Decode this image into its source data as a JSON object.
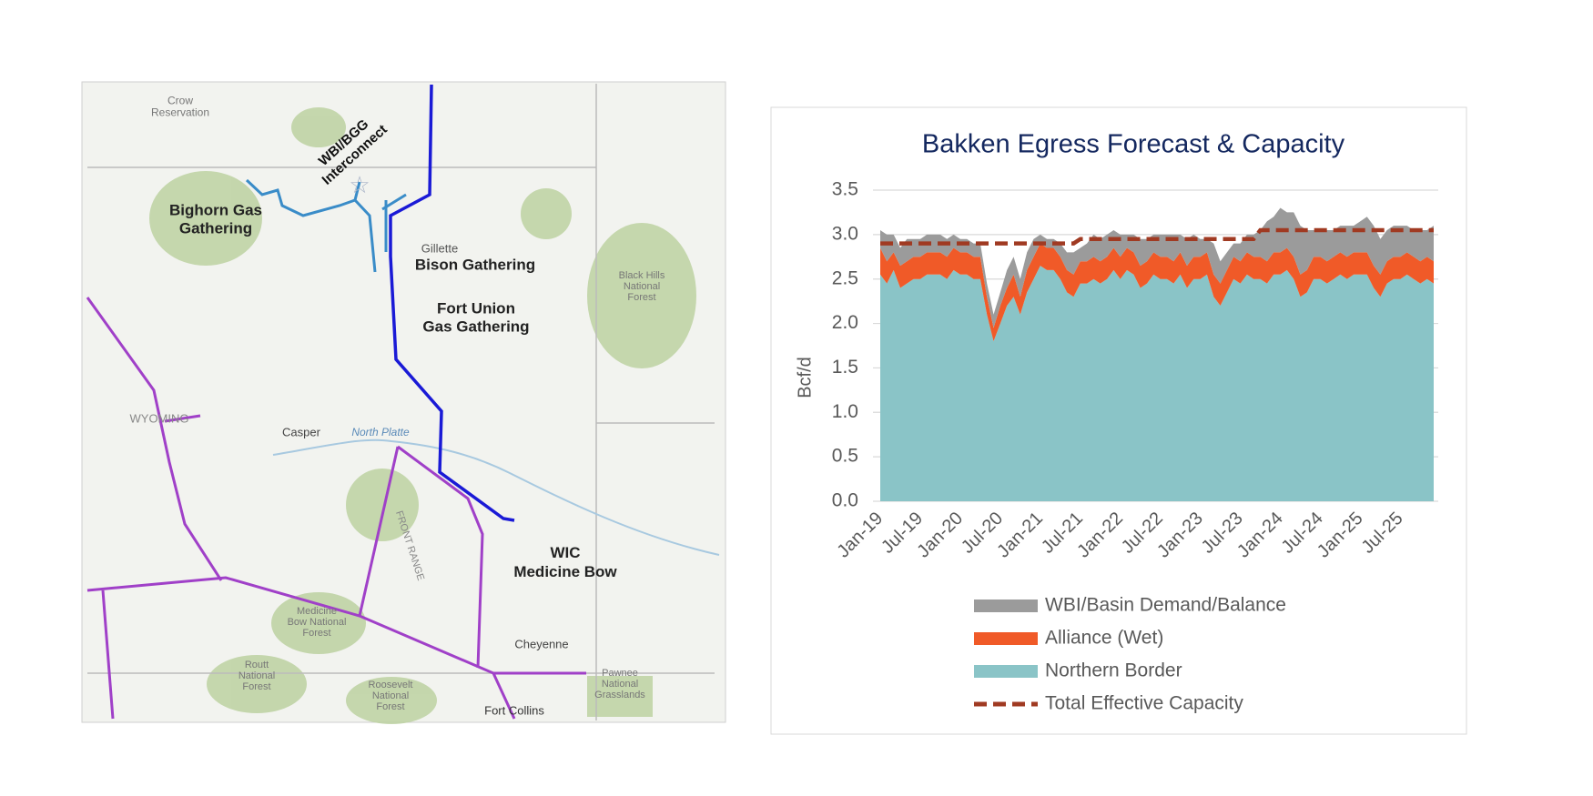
{
  "map": {
    "labels": [
      {
        "lines": [
          "Crow",
          "Reservation"
        ]
      },
      {
        "lines": [
          "WBI/BGG",
          "Interconnect"
        ]
      },
      {
        "lines": [
          "Bighorn Gas",
          "Gathering"
        ]
      },
      {
        "lines": [
          "Gillette"
        ]
      },
      {
        "lines": [
          "Bison Gathering"
        ]
      },
      {
        "lines": [
          "Fort Union",
          "Gas Gathering"
        ]
      },
      {
        "lines": [
          "Black Hills",
          "National",
          "Forest"
        ]
      },
      {
        "lines": [
          "WYOMING"
        ]
      },
      {
        "lines": [
          "Casper"
        ]
      },
      {
        "lines": [
          "North Platte"
        ]
      },
      {
        "lines": [
          "FRONT RANGE"
        ]
      },
      {
        "lines": [
          "WIC",
          "Medicine Bow"
        ]
      },
      {
        "lines": [
          "Medicine",
          "Bow National",
          "Forest"
        ]
      },
      {
        "lines": [
          "Routt",
          "National",
          "Forest"
        ]
      },
      {
        "lines": [
          "Roosevelt",
          "National",
          "Forest"
        ]
      },
      {
        "lines": [
          "Cheyenne"
        ]
      },
      {
        "lines": [
          "Pawnee",
          "National",
          "Grasslands"
        ]
      },
      {
        "lines": [
          "Fort Collins"
        ]
      }
    ]
  },
  "chart_data": {
    "type": "area",
    "stacked": true,
    "title": "Bakken Egress Forecast & Capacity",
    "y_label": "Bcf/d",
    "categories": [
      "Jan-19",
      null,
      null,
      null,
      null,
      null,
      "Jul-19",
      null,
      null,
      null,
      null,
      null,
      "Jan-20",
      null,
      null,
      null,
      null,
      null,
      "Jul-20",
      null,
      null,
      null,
      null,
      null,
      "Jan-21",
      null,
      null,
      null,
      null,
      null,
      "Jul-21",
      null,
      null,
      null,
      null,
      null,
      "Jan-22",
      null,
      null,
      null,
      null,
      null,
      "Jul-22",
      null,
      null,
      null,
      null,
      null,
      "Jan-23",
      null,
      null,
      null,
      null,
      null,
      "Jul-23",
      null,
      null,
      null,
      null,
      null,
      "Jan-24",
      null,
      null,
      null,
      null,
      null,
      "Jul-24",
      null,
      null,
      null,
      null,
      null,
      "Jan-25",
      null,
      null,
      null,
      null,
      null,
      "Jul-25",
      null,
      null,
      null,
      null,
      null
    ],
    "ylim": [
      0,
      3.5
    ],
    "yticks": [
      {
        "value": 0,
        "label": "0.0"
      },
      0.5,
      {
        "value": 1,
        "label": "1.0"
      },
      1.5,
      {
        "value": 2,
        "label": "2.0"
      },
      2.5,
      {
        "value": 3,
        "label": "3.0"
      },
      3.5
    ],
    "grid": true,
    "series": [
      {
        "name": "WBI/Basin Demand/Balance",
        "color": "#9b9b9b",
        "values": [
          0.2,
          0.3,
          0.2,
          0.2,
          0.25,
          0.2,
          0.2,
          0.2,
          0.2,
          0.2,
          0.2,
          0.15,
          0.15,
          0.15,
          0.15,
          0.15,
          0.15,
          0.15,
          0.15,
          0.2,
          0.2,
          0.2,
          0.2,
          0.2,
          0.1,
          0.1,
          0.1,
          0.15,
          0.2,
          0.25,
          0.15,
          0.2,
          0.25,
          0.25,
          0.25,
          0.2,
          0.25,
          0.15,
          0.2,
          0.3,
          0.25,
          0.2,
          0.25,
          0.25,
          0.3,
          0.2,
          0.3,
          0.25,
          0.2,
          0.15,
          0.35,
          0.25,
          0.2,
          0.15,
          0.2,
          0.2,
          0.25,
          0.3,
          0.45,
          0.4,
          0.5,
          0.4,
          0.5,
          0.55,
          0.45,
          0.3,
          0.3,
          0.35,
          0.3,
          0.3,
          0.35,
          0.3,
          0.35,
          0.4,
          0.45,
          0.4,
          0.35,
          0.35,
          0.35,
          0.3,
          0.3,
          0.35,
          0.3,
          0.4
        ]
      },
      {
        "name": "Alliance (Wet)",
        "color": "#f05a28",
        "values": [
          0.3,
          0.25,
          0.2,
          0.25,
          0.25,
          0.25,
          0.25,
          0.25,
          0.25,
          0.25,
          0.25,
          0.25,
          0.25,
          0.25,
          0.25,
          0.25,
          0.2,
          0.15,
          0.2,
          0.2,
          0.25,
          0.2,
          0.25,
          0.25,
          0.25,
          0.25,
          0.25,
          0.25,
          0.25,
          0.25,
          0.25,
          0.25,
          0.25,
          0.25,
          0.25,
          0.25,
          0.25,
          0.25,
          0.25,
          0.25,
          0.25,
          0.25,
          0.25,
          0.25,
          0.25,
          0.25,
          0.25,
          0.25,
          0.25,
          0.25,
          0.25,
          0.25,
          0.25,
          0.25,
          0.25,
          0.25,
          0.25,
          0.25,
          0.25,
          0.25,
          0.25,
          0.25,
          0.25,
          0.25,
          0.25,
          0.25,
          0.25,
          0.25,
          0.25,
          0.25,
          0.25,
          0.25,
          0.25,
          0.25,
          0.25,
          0.25,
          0.25,
          0.25,
          0.25,
          0.25,
          0.25,
          0.25,
          0.25,
          0.25
        ]
      },
      {
        "name": "Northern Border",
        "color": "#8ac4c7",
        "values": [
          2.55,
          2.45,
          2.6,
          2.4,
          2.45,
          2.5,
          2.5,
          2.55,
          2.55,
          2.55,
          2.5,
          2.6,
          2.55,
          2.55,
          2.5,
          2.5,
          2.1,
          1.8,
          2.0,
          2.2,
          2.3,
          2.1,
          2.35,
          2.5,
          2.65,
          2.6,
          2.6,
          2.5,
          2.35,
          2.3,
          2.45,
          2.45,
          2.5,
          2.45,
          2.5,
          2.6,
          2.5,
          2.6,
          2.55,
          2.4,
          2.45,
          2.55,
          2.5,
          2.5,
          2.45,
          2.55,
          2.4,
          2.5,
          2.5,
          2.55,
          2.3,
          2.2,
          2.35,
          2.5,
          2.45,
          2.55,
          2.5,
          2.5,
          2.45,
          2.55,
          2.55,
          2.6,
          2.5,
          2.3,
          2.35,
          2.5,
          2.5,
          2.45,
          2.5,
          2.55,
          2.5,
          2.55,
          2.55,
          2.55,
          2.4,
          2.3,
          2.45,
          2.5,
          2.5,
          2.55,
          2.5,
          2.45,
          2.5,
          2.45
        ]
      },
      {
        "name": "Total Effective Capacity",
        "color": "#a03a22",
        "type": "line",
        "dashed": true,
        "values": [
          2.9,
          2.9,
          2.9,
          2.9,
          2.9,
          2.9,
          2.9,
          2.9,
          2.9,
          2.9,
          2.9,
          2.9,
          2.9,
          2.9,
          2.9,
          2.9,
          2.9,
          2.9,
          2.9,
          2.9,
          2.9,
          2.9,
          2.9,
          2.9,
          2.9,
          2.9,
          2.9,
          2.9,
          2.9,
          2.9,
          2.95,
          2.95,
          2.95,
          2.95,
          2.95,
          2.95,
          2.95,
          2.95,
          2.95,
          2.95,
          2.95,
          2.95,
          2.95,
          2.95,
          2.95,
          2.95,
          2.95,
          2.95,
          2.95,
          2.95,
          2.95,
          2.95,
          2.95,
          2.95,
          2.95,
          2.95,
          2.95,
          3.05,
          3.05,
          3.05,
          3.05,
          3.05,
          3.05,
          3.05,
          3.05,
          3.05,
          3.05,
          3.05,
          3.05,
          3.05,
          3.05,
          3.05,
          3.05,
          3.05,
          3.05,
          3.05,
          3.05,
          3.05,
          3.05,
          3.05,
          3.05,
          3.05,
          3.05,
          3.05
        ]
      }
    ]
  }
}
